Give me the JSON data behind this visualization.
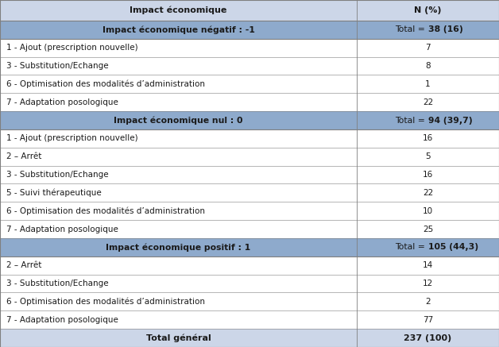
{
  "col1_header": "Impact économique",
  "col2_header": "N (%)",
  "sections": [
    {
      "section_label": "Impact économique négatif : -1",
      "section_value": "Total = 38 (16)",
      "rows": [
        {
          "label": "1 - Ajout (prescription nouvelle)",
          "value": "7"
        },
        {
          "label": "3 - Substitution/Echange",
          "value": "8"
        },
        {
          "label": "6 - Optimisation des modalités d’administration",
          "value": "1"
        },
        {
          "label": "7 - Adaptation posologique",
          "value": "22"
        }
      ]
    },
    {
      "section_label": "Impact économique nul : 0",
      "section_value": "Total = 94 (39,7)",
      "rows": [
        {
          "label": "1 - Ajout (prescription nouvelle)",
          "value": "16"
        },
        {
          "label": "2 – Arrêt",
          "value": "5"
        },
        {
          "label": "3 - Substitution/Echange",
          "value": "16"
        },
        {
          "label": "5 - Suivi thérapeutique",
          "value": "22"
        },
        {
          "label": "6 - Optimisation des modalités d’administration",
          "value": "10"
        },
        {
          "label": "7 - Adaptation posologique",
          "value": "25"
        }
      ]
    },
    {
      "section_label": "Impact économique positif : 1",
      "section_value": "Total = 105 (44,3)",
      "rows": [
        {
          "label": "2 – Arrêt",
          "value": "14"
        },
        {
          "label": "3 - Substitution/Echange",
          "value": "12"
        },
        {
          "label": "6 - Optimisation des modalités d’administration",
          "value": "2"
        },
        {
          "label": "7 - Adaptation posologique",
          "value": "77"
        }
      ]
    }
  ],
  "footer_label": "Total général",
  "footer_value": "237 (100)",
  "header_bg": "#ccd6e8",
  "data_bg": "#ffffff",
  "section_bg": "#8eaacc",
  "footer_bg": "#ccd6e8",
  "border_color": "#7f7f7f",
  "text_color": "#1a1a1a",
  "font_size": 7.5,
  "section_font_size": 7.8,
  "header_font_size": 8.0,
  "col_split": 0.715
}
